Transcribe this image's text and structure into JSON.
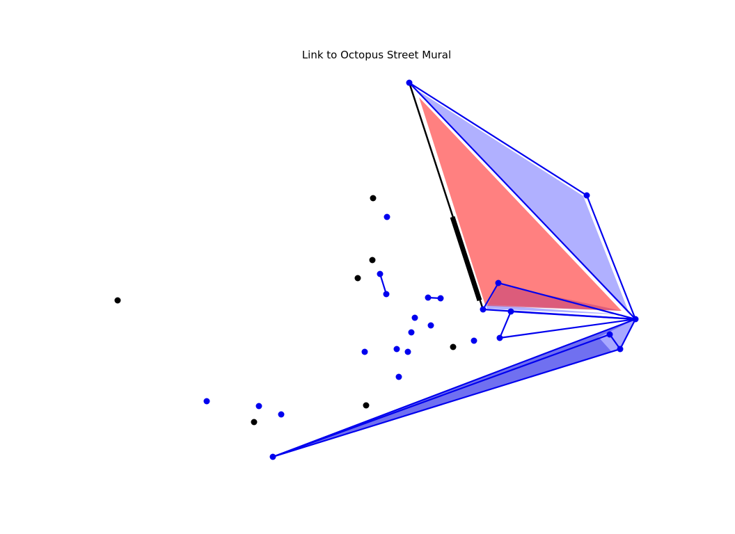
{
  "figure": {
    "title": "Link to Octopus Street Mural"
  },
  "colors": {
    "background": "#ffffff",
    "blue": "#0000ee",
    "black": "#000000",
    "red_fill": "#ff8080",
    "light_blue_fill": "#b0b0ff",
    "mid_blue_fill": "#7070f0"
  }
}
